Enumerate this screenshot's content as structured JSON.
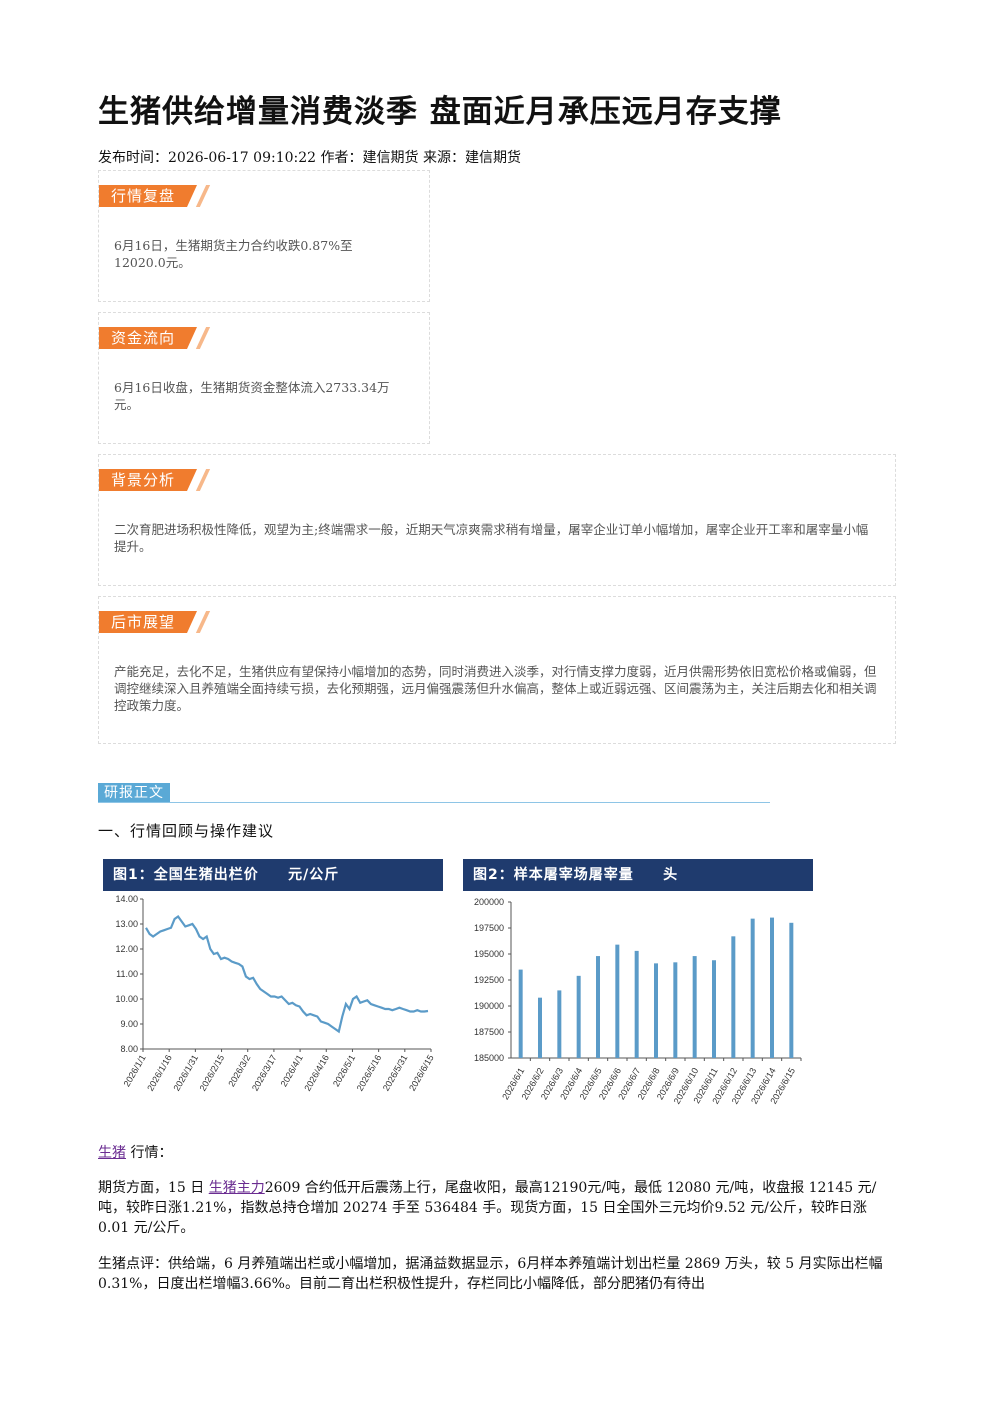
{
  "article": {
    "title": "生猪供给增量消费淡季 盘面近月承压远月存支撑",
    "meta": "发布时间：2026-06-17 09:10:22 作者：建信期货 来源：建信期货"
  },
  "boxes": {
    "review": {
      "tag": "行情复盘",
      "text": "6月16日，生猪期货主力合约收跌0.87%至12020.0元。"
    },
    "funds": {
      "tag": "资金流向",
      "text": "6月16日收盘，生猪期货资金整体流入2733.34万元。"
    },
    "background": {
      "tag": "背景分析",
      "text": "二次育肥进场积极性降低，观望为主;终端需求一般，近期天气凉爽需求稍有增量，屠宰企业订单小幅增加，屠宰企业开工率和屠宰量小幅提升。"
    },
    "outlook": {
      "tag": "后市展望",
      "text": "产能充足，去化不足，生猪供应有望保持小幅增加的态势，同时消费进入淡季，对行情支撑力度弱，近月供需形势依旧宽松价格或偏弱，但调控继续深入且养殖端全面持续亏损，去化预期强，远月偏强震荡但升水偏高，整体上或近弱远强、区间震荡为主，关注后期去化和相关调控政策力度。"
    }
  },
  "report": {
    "tag": "研报正文",
    "section1": "一、行情回顾与操作建议"
  },
  "chart_data": [
    {
      "type": "line",
      "title": "图1：全国生猪出栏价     元/公斤",
      "ylim": [
        8.0,
        14.0
      ],
      "yticks": [
        "14.00",
        "13.00",
        "12.00",
        "11.00",
        "10.00",
        "9.00",
        "8.00"
      ],
      "xticks": [
        "2026/1/1",
        "2026/1/16",
        "2026/1/31",
        "2026/2/15",
        "2026/3/2",
        "2026/3/17",
        "2026/4/1",
        "2026/4/16",
        "2026/5/1",
        "2026/5/16",
        "2026/5/31",
        "2026/6/15"
      ],
      "series": [
        {
          "color": "#5b9bc8",
          "values": [
            12.85,
            12.6,
            12.5,
            12.6,
            12.7,
            12.75,
            12.8,
            12.85,
            13.2,
            13.3,
            13.1,
            12.9,
            12.95,
            13.0,
            12.8,
            12.5,
            12.4,
            12.5,
            12.0,
            11.8,
            11.85,
            11.6,
            11.65,
            11.6,
            11.5,
            11.45,
            11.4,
            11.3,
            10.9,
            10.8,
            10.85,
            10.6,
            10.4,
            10.3,
            10.2,
            10.1,
            10.1,
            10.05,
            10.1,
            9.95,
            9.8,
            9.85,
            9.75,
            9.7,
            9.5,
            9.35,
            9.4,
            9.35,
            9.3,
            9.1,
            9.05,
            9.0,
            8.9,
            8.8,
            8.7,
            9.3,
            9.8,
            9.6,
            10.0,
            10.1,
            9.85,
            9.9,
            9.95,
            9.8,
            9.75,
            9.7,
            9.65,
            9.6,
            9.6,
            9.55,
            9.6,
            9.65,
            9.6,
            9.55,
            9.5,
            9.5,
            9.55,
            9.5,
            9.5,
            9.52
          ]
        }
      ]
    },
    {
      "type": "bar",
      "title": "图2：样本屠宰场屠宰量     头",
      "ylim": [
        185000,
        200000
      ],
      "yticks": [
        "200000",
        "197500",
        "195000",
        "192500",
        "190000",
        "187500",
        "185000"
      ],
      "categories": [
        "2026/6/1",
        "2026/6/2",
        "2026/6/3",
        "2026/6/4",
        "2026/6/5",
        "2026/6/6",
        "2026/6/7",
        "2026/6/8",
        "2026/6/9",
        "2026/6/10",
        "2026/6/11",
        "2026/6/12",
        "2026/6/13",
        "2026/6/14",
        "2026/6/15"
      ],
      "values": [
        193500,
        190800,
        191500,
        192900,
        194800,
        195900,
        195300,
        194100,
        194200,
        194800,
        194400,
        196700,
        198400,
        198500,
        198000
      ],
      "color": "#5b9bc8"
    }
  ],
  "body": {
    "hog_link": "生猪",
    "hog_label": "行情：",
    "p1_a": "期货方面，15 日 ",
    "p1_link": "生猪主力",
    "p1_b": "2609 合约低开后震荡上行，尾盘收阳，最高12190元/吨，最低 12080 元/吨，收盘报 12145 元/吨，较昨日涨1.21%，指数总持仓增加 20274 手至 536484 手。现货方面，15 日全国外三元均价9.52 元/公斤，较昨日涨 0.01 元/公斤。",
    "p2": "生猪点评：供给端，6 月养殖端出栏或小幅增加，据涌益数据显示，6月样本养殖端计划出栏量 2869 万头，较 5 月实际出栏幅 0.31%，日度出栏增幅3.66%。目前二育出栏积极性提升，存栏同比小幅降低，部分肥猪仍有待出"
  }
}
